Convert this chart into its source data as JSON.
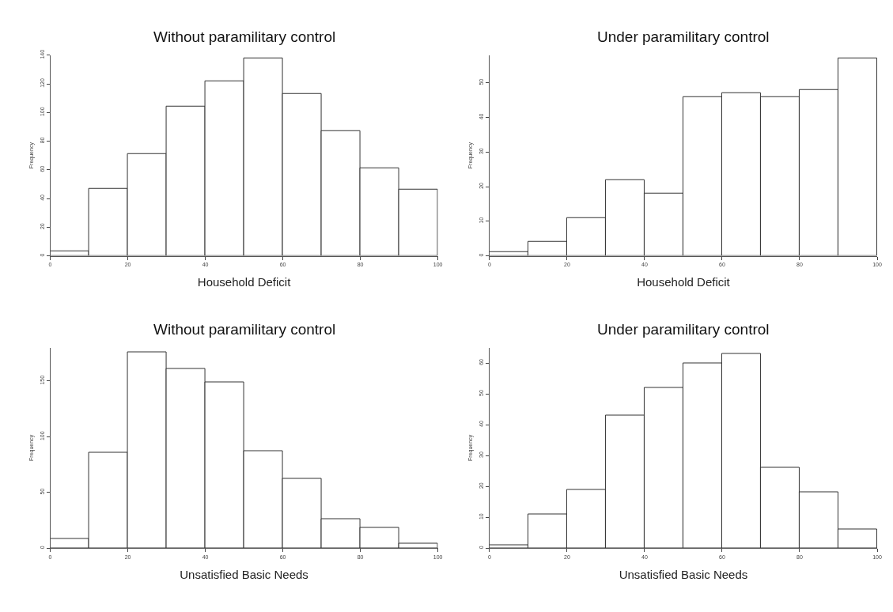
{
  "chart_data": [
    {
      "type": "histogram",
      "title": "Without paramilitary control",
      "xlabel": "Household Deficit",
      "ylabel": "Frequency",
      "bins": [
        0,
        10,
        20,
        30,
        40,
        50,
        60,
        70,
        80,
        90,
        100
      ],
      "values": [
        3,
        47,
        71,
        104,
        122,
        138,
        113,
        87,
        61,
        46
      ],
      "color": "#ffffff",
      "xlim": [
        0,
        100
      ],
      "xticks": [
        0,
        20,
        40,
        60,
        80,
        100
      ],
      "ylim": [
        0,
        140
      ],
      "yticks": [
        0,
        20,
        40,
        60,
        80,
        100,
        120,
        140
      ]
    },
    {
      "type": "histogram",
      "title": "Under paramilitary control",
      "xlabel": "Household Deficit",
      "ylabel": "Frequency",
      "bins": [
        0,
        10,
        20,
        30,
        40,
        50,
        60,
        70,
        80,
        90,
        100
      ],
      "values": [
        1,
        4,
        11,
        22,
        18,
        46,
        47,
        46,
        48,
        57
      ],
      "color": "#ffffff",
      "xlim": [
        0,
        100
      ],
      "xticks": [
        0,
        20,
        40,
        60,
        80,
        100
      ],
      "ylim": [
        0,
        58
      ],
      "yticks": [
        0,
        10,
        20,
        30,
        40,
        50
      ]
    },
    {
      "type": "histogram",
      "title": "Without paramilitary control",
      "xlabel": "Unsatisfied Basic Needs",
      "ylabel": "Frequency",
      "bins": [
        0,
        10,
        20,
        30,
        40,
        50,
        60,
        70,
        80,
        90,
        100
      ],
      "values": [
        8,
        86,
        176,
        161,
        149,
        87,
        62,
        26,
        18,
        4
      ],
      "color": "#ffffff",
      "xlim": [
        0,
        100
      ],
      "xticks": [
        0,
        20,
        40,
        60,
        80,
        100
      ],
      "ylim": [
        0,
        180
      ],
      "yticks": [
        0,
        50,
        100,
        150
      ]
    },
    {
      "type": "histogram",
      "title": "Under paramilitary control",
      "xlabel": "Unsatisfied Basic Needs",
      "ylabel": "Frequency",
      "bins": [
        0,
        10,
        20,
        30,
        40,
        50,
        60,
        70,
        80,
        90,
        100
      ],
      "values": [
        1,
        11,
        19,
        43,
        52,
        60,
        63,
        26,
        18,
        6
      ],
      "color": "#ffffff",
      "xlim": [
        0,
        100
      ],
      "xticks": [
        0,
        20,
        40,
        60,
        80,
        100
      ],
      "ylim": [
        0,
        65
      ],
      "yticks": [
        0,
        10,
        20,
        30,
        40,
        50,
        60
      ]
    }
  ]
}
